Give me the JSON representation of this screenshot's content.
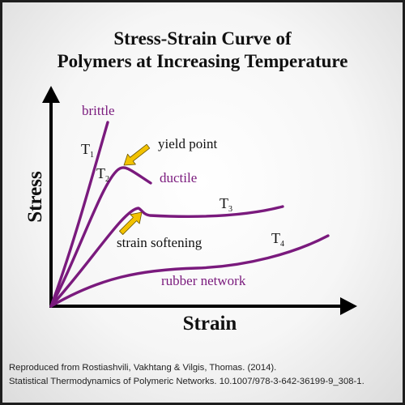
{
  "title": {
    "line1": "Stress-Strain Curve of",
    "line2": "Polymers at Increasing Temperature"
  },
  "axes": {
    "x_label": "Strain",
    "y_label": "Stress"
  },
  "curves": [
    {
      "name": "T1",
      "label_main": "T",
      "label_sub": "1",
      "description": "brittle"
    },
    {
      "name": "T2",
      "label_main": "T",
      "label_sub": "2",
      "description": "ductile"
    },
    {
      "name": "T3",
      "label_main": "T",
      "label_sub": "3",
      "description": ""
    },
    {
      "name": "T4",
      "label_main": "T",
      "label_sub": "4",
      "description": "rubber network"
    }
  ],
  "annotations": {
    "yield_point": "yield point",
    "strain_softening": "strain softening"
  },
  "colors": {
    "curve": "#7a1a7d",
    "curve_label": "#7a1a7d",
    "arrow_fill": "#f2c200",
    "arrow_stroke": "#6a5400",
    "axis": "#000000"
  },
  "footer": {
    "line1": "Reproduced from Rostiashvili, Vakhtang & Vilgis, Thomas. (2014).",
    "line2": "Statistical Thermodynamics of Polymeric Networks. 10.1007/978-3-642-36199-9_308-1."
  }
}
